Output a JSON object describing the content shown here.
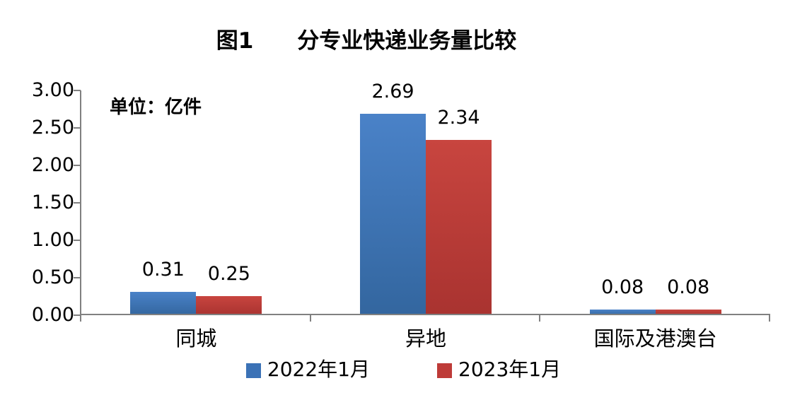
{
  "chart_data": {
    "type": "bar",
    "title": "图1　　分专业快递业务量比较",
    "unit_label": "单位：亿件",
    "categories": [
      "同城",
      "异地",
      "国际及港澳台"
    ],
    "series": [
      {
        "name": "2022年1月",
        "values": [
          0.31,
          2.69,
          0.08
        ],
        "color": "#3B72B6",
        "color_light": "#4A82C8",
        "color_dark": "#33669F"
      },
      {
        "name": "2023年1月",
        "values": [
          0.25,
          2.34,
          0.08
        ],
        "color": "#BE3B38",
        "color_light": "#C8453F",
        "color_dark": "#A93330"
      }
    ],
    "value_labels": [
      [
        "0.31",
        "2.69",
        "0.08"
      ],
      [
        "0.25",
        "2.34",
        "0.08"
      ]
    ],
    "xlabel": "",
    "ylabel": "",
    "ylim": [
      0,
      3
    ],
    "ytick_step": 0.5,
    "ytick_labels": [
      "0.00",
      "0.50",
      "1.00",
      "1.50",
      "2.00",
      "2.50",
      "3.00"
    ],
    "grid": false,
    "legend_position": "bottom",
    "axis_color": "#808080",
    "text_color": "#000000",
    "background": "#FFFFFF"
  }
}
